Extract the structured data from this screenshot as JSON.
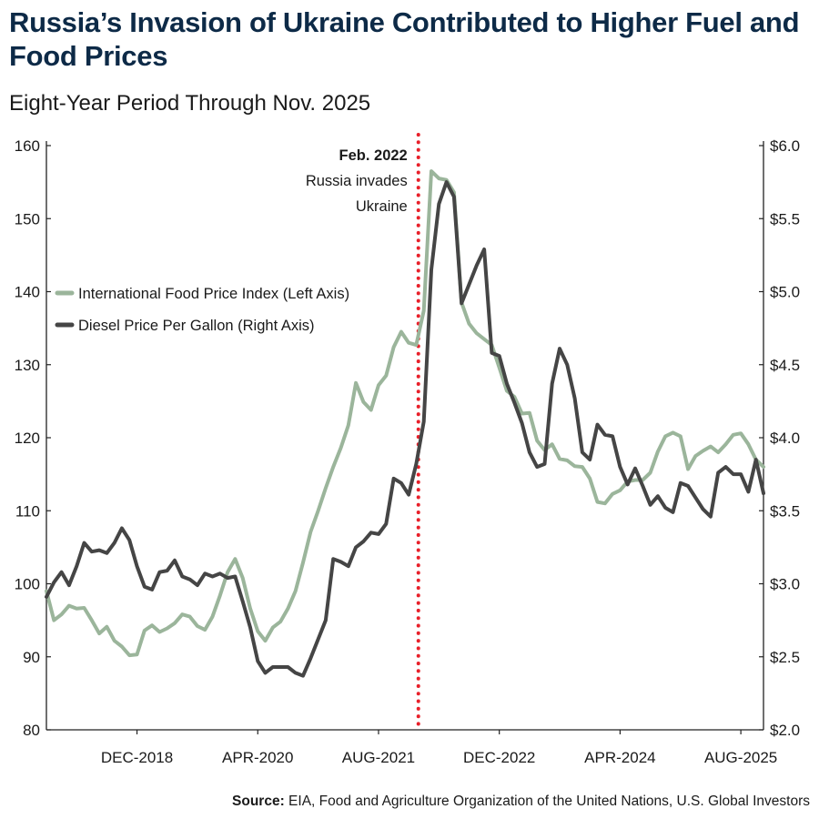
{
  "title": "Russia’s Invasion of Ukraine Contributed to Higher Fuel and Food Prices",
  "subtitle": "Eight-Year Period Through Nov. 2025",
  "source_label": "Source:",
  "source_text": "EIA, Food and Agriculture Organization of the United Nations, U.S. Global Investors",
  "chart_data": {
    "type": "line",
    "title": "Russia’s Invasion of Ukraine Contributed to Higher Fuel and Food Prices",
    "x": [
      "2017-12",
      "2018-01",
      "2018-02",
      "2018-03",
      "2018-04",
      "2018-05",
      "2018-06",
      "2018-07",
      "2018-08",
      "2018-09",
      "2018-10",
      "2018-11",
      "2018-12",
      "2019-01",
      "2019-02",
      "2019-03",
      "2019-04",
      "2019-05",
      "2019-06",
      "2019-07",
      "2019-08",
      "2019-09",
      "2019-10",
      "2019-11",
      "2019-12",
      "2020-01",
      "2020-02",
      "2020-03",
      "2020-04",
      "2020-05",
      "2020-06",
      "2020-07",
      "2020-08",
      "2020-09",
      "2020-10",
      "2020-11",
      "2020-12",
      "2021-01",
      "2021-02",
      "2021-03",
      "2021-04",
      "2021-05",
      "2021-06",
      "2021-07",
      "2021-08",
      "2021-09",
      "2021-10",
      "2021-11",
      "2021-12",
      "2022-01",
      "2022-02",
      "2022-03",
      "2022-04",
      "2022-05",
      "2022-06",
      "2022-07",
      "2022-08",
      "2022-09",
      "2022-10",
      "2022-11",
      "2022-12",
      "2023-01",
      "2023-02",
      "2023-03",
      "2023-04",
      "2023-05",
      "2023-06",
      "2023-07",
      "2023-08",
      "2023-09",
      "2023-10",
      "2023-11",
      "2023-12",
      "2024-01",
      "2024-02",
      "2024-03",
      "2024-04",
      "2024-05",
      "2024-06",
      "2024-07",
      "2024-08",
      "2024-09",
      "2024-10",
      "2024-11",
      "2024-12",
      "2025-01",
      "2025-02",
      "2025-03",
      "2025-04",
      "2025-05",
      "2025-06",
      "2025-07",
      "2025-08",
      "2025-09",
      "2025-10",
      "2025-11"
    ],
    "x_tick_labels": [
      "DEC-2018",
      "APR-2020",
      "AUG-2021",
      "DEC-2022",
      "APR-2024",
      "AUG-2025"
    ],
    "x_ticks": [
      "2018-12",
      "2020-04",
      "2021-08",
      "2022-12",
      "2024-04",
      "2025-08"
    ],
    "y_left": {
      "lim": [
        80,
        160
      ],
      "ticks": [
        "80",
        "90",
        "100",
        "110",
        "120",
        "130",
        "140",
        "150",
        "160"
      ]
    },
    "y_right": {
      "lim": [
        2.0,
        6.0
      ],
      "ticks": [
        "$2.0",
        "$2.5",
        "$3.0",
        "$3.5",
        "$4.0",
        "$4.5",
        "$5.0",
        "$5.5",
        "$6.0"
      ]
    },
    "grid": false,
    "legend_position": "left",
    "series": [
      {
        "name": "International Food Price Index (Left Axis)",
        "axis": "left",
        "color": "#9bb59b",
        "values": [
          99.0,
          95.0,
          95.8,
          97.0,
          96.6,
          96.7,
          95.0,
          93.2,
          94.1,
          92.2,
          91.4,
          90.2,
          90.3,
          93.6,
          94.3,
          93.4,
          93.9,
          94.6,
          95.8,
          95.5,
          94.2,
          93.7,
          95.5,
          98.4,
          101.6,
          103.4,
          100.8,
          96.6,
          93.5,
          92.2,
          94.0,
          94.8,
          96.6,
          99.0,
          102.9,
          107.1,
          110.0,
          113.1,
          116.0,
          118.6,
          121.7,
          127.5,
          124.9,
          123.8,
          127.2,
          128.5,
          132.4,
          134.5,
          133.0,
          132.7,
          137.4,
          156.5,
          155.5,
          155.3,
          153.6,
          138.5,
          135.6,
          134.3,
          133.5,
          132.7,
          129.6,
          126.4,
          125.6,
          123.3,
          123.4,
          119.6,
          118.3,
          119.1,
          117.1,
          116.9,
          116.1,
          116.0,
          114.4,
          111.2,
          111.0,
          112.3,
          112.8,
          114.0,
          114.2,
          114.2,
          115.2,
          118.1,
          120.2,
          120.7,
          120.2,
          115.7,
          117.5,
          118.2,
          118.8,
          118.0,
          119.1,
          120.4,
          120.6,
          119.1,
          117.0,
          116.0
        ]
      },
      {
        "name": "Diesel Price Per Gallon (Right Axis)",
        "axis": "right",
        "color": "#454545",
        "values": [
          2.91,
          3.01,
          3.08,
          2.99,
          3.12,
          3.28,
          3.22,
          3.23,
          3.21,
          3.28,
          3.38,
          3.3,
          3.12,
          2.98,
          2.96,
          3.08,
          3.09,
          3.16,
          3.05,
          3.03,
          2.99,
          3.07,
          3.05,
          3.07,
          3.04,
          3.05,
          2.88,
          2.7,
          2.47,
          2.39,
          2.43,
          2.43,
          2.43,
          2.39,
          2.37,
          2.49,
          2.62,
          2.75,
          3.17,
          3.15,
          3.12,
          3.25,
          3.29,
          3.35,
          3.34,
          3.41,
          3.72,
          3.69,
          3.61,
          3.82,
          4.11,
          5.15,
          5.6,
          5.75,
          5.65,
          4.92,
          5.05,
          5.18,
          5.29,
          4.58,
          4.56,
          4.37,
          4.24,
          4.1,
          3.9,
          3.8,
          3.82,
          4.37,
          4.61,
          4.5,
          4.27,
          3.9,
          3.85,
          4.09,
          4.02,
          4.01,
          3.8,
          3.68,
          3.79,
          3.67,
          3.54,
          3.6,
          3.52,
          3.49,
          3.69,
          3.67,
          3.59,
          3.51,
          3.46,
          3.76,
          3.8,
          3.75,
          3.75,
          3.63,
          3.85,
          3.62
        ]
      }
    ],
    "annotations": [
      {
        "x": "2022-02",
        "label": "Feb. 2022",
        "text_lines": [
          "Russia invades",
          "Ukraine"
        ],
        "color": "#e8202a",
        "style": "dotted-vertical-line"
      }
    ]
  }
}
